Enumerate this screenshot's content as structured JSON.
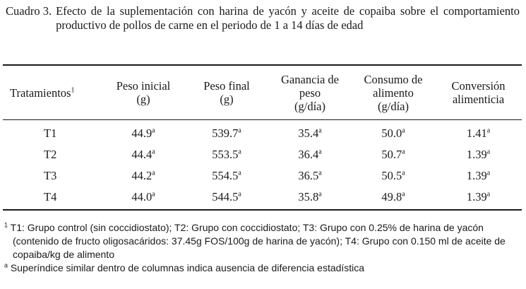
{
  "caption": {
    "label": "Cuadro 3.",
    "text": "Efecto de la suplementación con harina de yacón y aceite de copaiba sobre el comportamiento productivo de pollos de carne en el periodo de 1 a 14 días de edad"
  },
  "table": {
    "headers": [
      {
        "lines": [
          "Tratamientos"
        ],
        "sup": "1"
      },
      {
        "lines": [
          "Peso inicial",
          "(g)"
        ]
      },
      {
        "lines": [
          "Peso final",
          "(g)"
        ]
      },
      {
        "lines": [
          "Ganancia de",
          "peso",
          "(g/día)"
        ]
      },
      {
        "lines": [
          "Consumo de",
          "alimento",
          "(g/día)"
        ]
      },
      {
        "lines": [
          "Conversión",
          "alimenticia"
        ]
      }
    ],
    "rows": [
      {
        "name": "T1",
        "cells": [
          {
            "v": "44.9",
            "s": "a"
          },
          {
            "v": "539.7",
            "s": "a"
          },
          {
            "v": "35.4",
            "s": "a"
          },
          {
            "v": "50.0",
            "s": "a"
          },
          {
            "v": "1.41",
            "s": "a"
          }
        ]
      },
      {
        "name": "T2",
        "cells": [
          {
            "v": "44.4",
            "s": "a"
          },
          {
            "v": "553.5",
            "s": "a"
          },
          {
            "v": "36.4",
            "s": "a"
          },
          {
            "v": "50.7",
            "s": "a"
          },
          {
            "v": "1.39",
            "s": "a"
          }
        ]
      },
      {
        "name": "T3",
        "cells": [
          {
            "v": "44.2",
            "s": "a"
          },
          {
            "v": "554.5",
            "s": "a"
          },
          {
            "v": "36.5",
            "s": "a"
          },
          {
            "v": "50.5",
            "s": "a"
          },
          {
            "v": "1.39",
            "s": "a"
          }
        ]
      },
      {
        "name": "T4",
        "cells": [
          {
            "v": "44.0",
            "s": "a"
          },
          {
            "v": "544.5",
            "s": "a"
          },
          {
            "v": "35.8",
            "s": "a"
          },
          {
            "v": "49.8",
            "s": "a"
          },
          {
            "v": "1.39",
            "s": "a"
          }
        ]
      }
    ]
  },
  "footnotes": {
    "fn1_marker": "1",
    "fn1_text": " T1: Grupo control (sin coccidiostato); T2: Grupo con coccidiostato; T3: Grupo con 0.25% de harina de yacón (contenido de fructo oligosacáridos: 37.45g FOS/100g de harina de yacón); T4: Grupo con 0.150 ml de aceite de copaiba/kg de alimento",
    "fna_marker": "a",
    "fna_text": " Superíndice similar dentro de columnas indica ausencia de diferencia estadística"
  }
}
